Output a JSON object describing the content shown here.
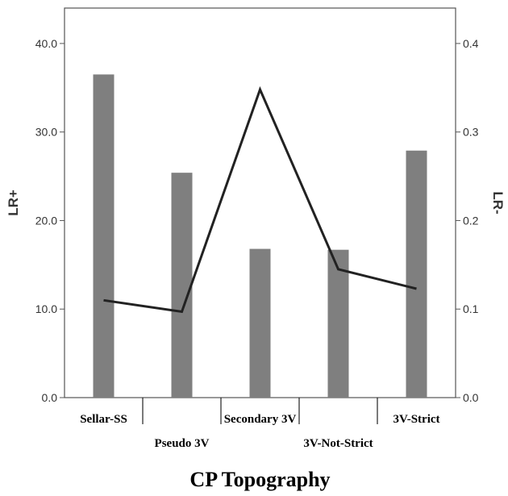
{
  "chart_data": {
    "type": "bar",
    "xlabel": "CP Topography",
    "categories": [
      "Sellar-SS",
      "Pseudo 3V",
      "Secondary 3V",
      "3V-Not-Strict",
      "3V-Strict"
    ],
    "series": [
      {
        "name": "LR+",
        "type": "bar",
        "axis": "left",
        "values": [
          36.5,
          25.4,
          16.8,
          16.7,
          27.9
        ]
      },
      {
        "name": "LR-",
        "type": "line",
        "axis": "right",
        "values": [
          0.11,
          0.097,
          0.348,
          0.145,
          0.123
        ]
      }
    ],
    "y_left": {
      "label": "LR+",
      "lim": [
        0,
        44
      ],
      "ticks": [
        "0.0",
        "10.0",
        "20.0",
        "30.0",
        "40.0"
      ]
    },
    "y_right": {
      "label": "LR-",
      "lim": [
        0,
        0.44
      ],
      "ticks": [
        "0.0",
        "0.1",
        "0.2",
        "0.3",
        "0.4"
      ]
    },
    "grid": false,
    "legend": "none",
    "colors": {
      "bar": "#7f7f7f",
      "line": "#222222",
      "axis": "#555555"
    }
  }
}
